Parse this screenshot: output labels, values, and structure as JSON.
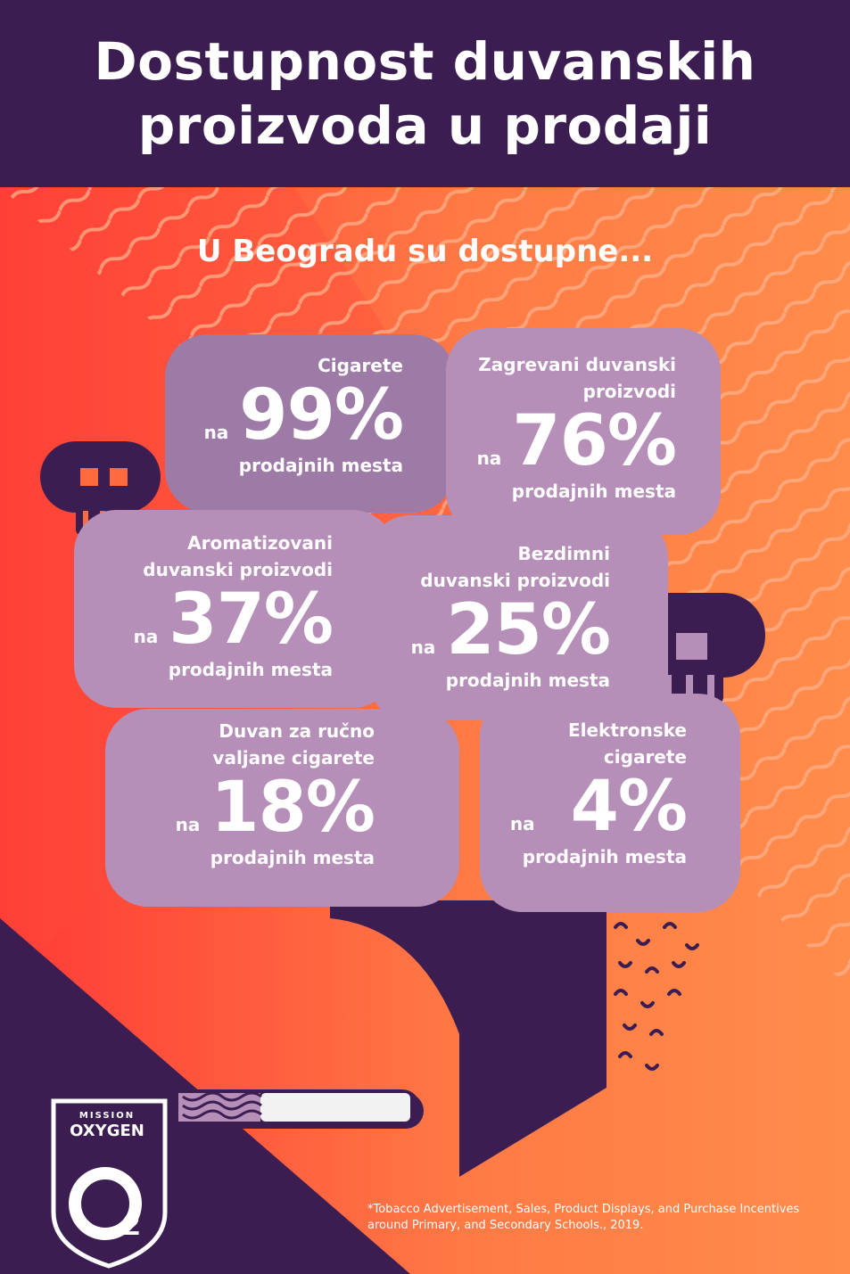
{
  "header": {
    "title_line1": "Dostupnost duvanskih",
    "title_line2": "proizvoda u prodaji"
  },
  "subtitle": "U Beogradu su dostupne...",
  "prefix": "na",
  "suffix": "prodajnih mesta",
  "items": [
    {
      "title": [
        "Cigarete"
      ],
      "percent": "99%"
    },
    {
      "title": [
        "Zagrevani duvanski",
        "proizvodi"
      ],
      "percent": "76%"
    },
    {
      "title": [
        "Aromatizovani",
        "duvanski proizvodi"
      ],
      "percent": "37%"
    },
    {
      "title": [
        "Bezdimni",
        "duvanski proizvodi"
      ],
      "percent": "25%"
    },
    {
      "title": [
        "Duvan za ručno",
        "valjane cigarete"
      ],
      "percent": "18%"
    },
    {
      "title": [
        "Elektronske",
        "cigarete"
      ],
      "percent": "4%"
    }
  ],
  "logo": {
    "top": "MISSION",
    "main": "OXYGEN",
    "mark": "O2"
  },
  "footnote": "*Tobacco Advertisement, Sales, Product Displays, and Purchase Incentives around Primary, and Secondary Schools., 2019.",
  "colors": {
    "purple": "#3b1d52",
    "bubble_dark": "#9d7ba6",
    "bubble_light": "#b68fb9",
    "orange": "#ff8a4a",
    "red": "#ff3d36"
  }
}
